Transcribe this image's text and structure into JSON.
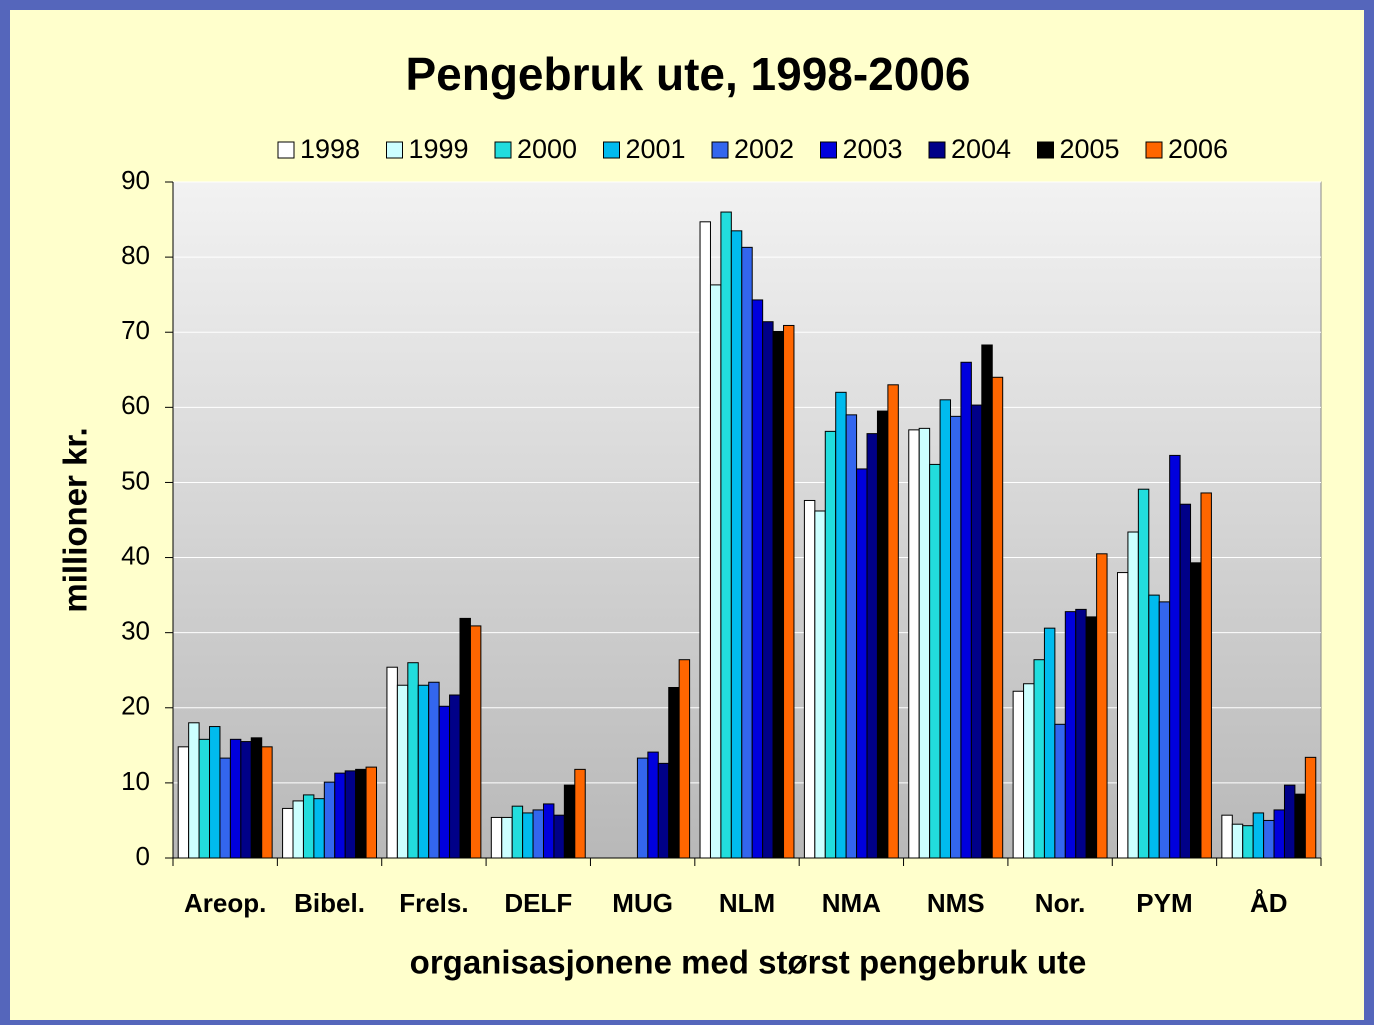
{
  "chart_data": {
    "type": "bar",
    "title": "Pengebruk ute, 1998-2006",
    "x_label": "organisasjonene med størst pengebruk ute",
    "y_label": "millioner kr.",
    "categories": [
      "Areop.",
      "Bibel.",
      "Frels.",
      "DELF",
      "MUG",
      "NLM",
      "NMA",
      "NMS",
      "Nor.",
      "PYM",
      "ÅD"
    ],
    "series": [
      {
        "name": "1998",
        "color": "#ffffff",
        "values": [
          14.8,
          6.6,
          25.4,
          5.4,
          null,
          84.7,
          47.6,
          57,
          22.2,
          38,
          5.7
        ]
      },
      {
        "name": "1999",
        "color": "#ccffff",
        "values": [
          18,
          7.6,
          23,
          5.4,
          null,
          76.3,
          46.2,
          57.2,
          23.2,
          43.4,
          4.5
        ]
      },
      {
        "name": "2000",
        "color": "#22dddd",
        "values": [
          15.8,
          8.4,
          26,
          6.9,
          null,
          86,
          56.8,
          52.4,
          26.4,
          49.1,
          4.3
        ]
      },
      {
        "name": "2001",
        "color": "#00bbee",
        "values": [
          17.5,
          7.9,
          23,
          6,
          null,
          83.5,
          62,
          61,
          30.6,
          35,
          6
        ]
      },
      {
        "name": "2002",
        "color": "#3366ee",
        "values": [
          13.3,
          10.1,
          23.4,
          6.4,
          13.3,
          81.3,
          59,
          58.8,
          17.8,
          34.1,
          5
        ]
      },
      {
        "name": "2003",
        "color": "#0000dd",
        "values": [
          15.8,
          11.3,
          20.2,
          7.2,
          14.1,
          74.3,
          51.8,
          66,
          32.8,
          53.6,
          6.4
        ]
      },
      {
        "name": "2004",
        "color": "#000088",
        "values": [
          15.5,
          11.6,
          21.7,
          5.7,
          12.6,
          71.4,
          56.5,
          60.3,
          33.1,
          47.1,
          9.7
        ]
      },
      {
        "name": "2005",
        "color": "#000000",
        "values": [
          16,
          11.8,
          31.9,
          9.7,
          22.7,
          70.1,
          59.5,
          68.3,
          32.1,
          39.3,
          8.5
        ]
      },
      {
        "name": "2006",
        "color": "#ff6600",
        "values": [
          14.8,
          12.1,
          30.9,
          11.8,
          26.4,
          70.9,
          63,
          64,
          40.5,
          48.6,
          13.4
        ]
      }
    ],
    "ylim": [
      0,
      90
    ],
    "yticks": [
      0,
      10,
      20,
      30,
      40,
      50,
      60,
      70,
      80,
      90
    ],
    "grid": true,
    "legend": "top"
  }
}
